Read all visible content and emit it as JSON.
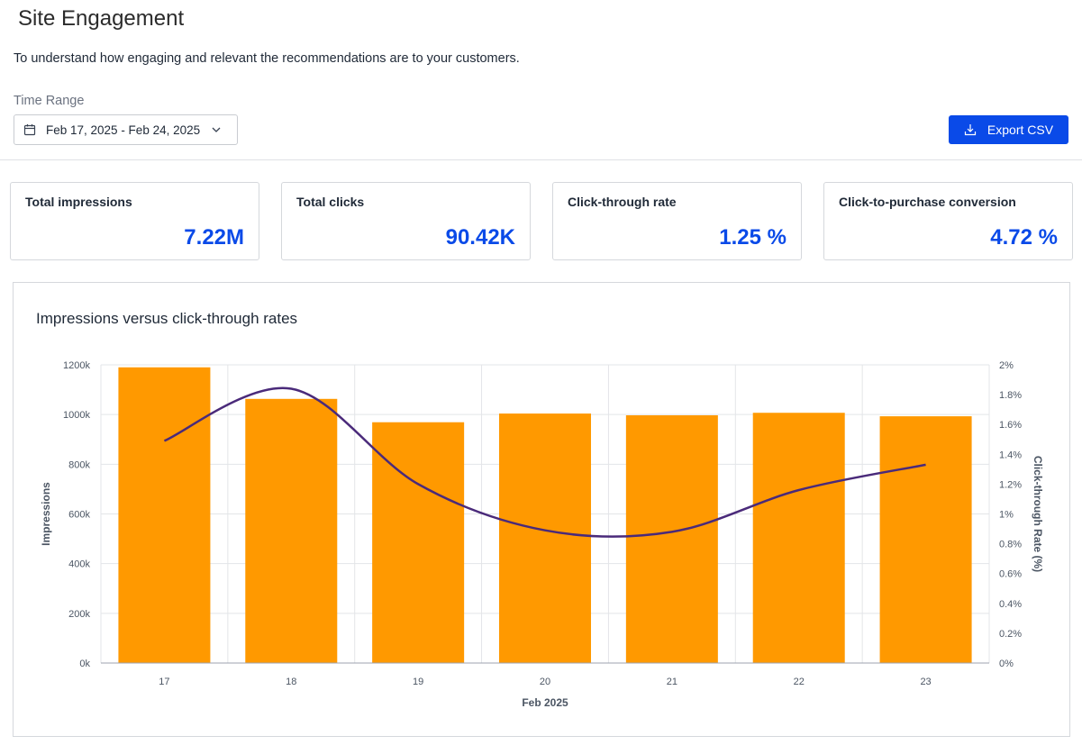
{
  "header": {
    "title": "Site Engagement",
    "description": "To understand how engaging and relevant the recommendations are to your customers."
  },
  "time_range": {
    "label": "Time Range",
    "value": "Feb 17, 2025 - Feb 24, 2025"
  },
  "export": {
    "label": "Export CSV"
  },
  "metrics": [
    {
      "label": "Total impressions",
      "value": "7.22M"
    },
    {
      "label": "Total clicks",
      "value": "90.42K"
    },
    {
      "label": "Click-through rate",
      "value": "1.25 %"
    },
    {
      "label": "Click-to-purchase conversion",
      "value": "4.72 %"
    }
  ],
  "colors": {
    "accent": "#0a4ae8",
    "bar": "#ff9900",
    "line": "#4a2a7a"
  },
  "chart_data": {
    "type": "bar",
    "title": "Impressions versus click-through rates",
    "categories": [
      "17",
      "18",
      "19",
      "20",
      "21",
      "22",
      "23"
    ],
    "xlabel": "Feb 2025",
    "ylabel": "Impressions",
    "y2label": "Click-through Rate (%)",
    "ylim": [
      0,
      1200000
    ],
    "y2lim": [
      0,
      2
    ],
    "yticks": [
      "0k",
      "200k",
      "400k",
      "600k",
      "800k",
      "1000k",
      "1200k"
    ],
    "y2ticks": [
      "0%",
      "0.2%",
      "0.4%",
      "0.6%",
      "0.8%",
      "1%",
      "1.2%",
      "1.4%",
      "1.6%",
      "1.8%",
      "2%"
    ],
    "grid": true,
    "series": [
      {
        "type": "bar",
        "axis": "left",
        "values": [
          1190000,
          1063000,
          969000,
          1004000,
          997000,
          1007000,
          993000
        ]
      },
      {
        "type": "line",
        "axis": "right",
        "values": [
          1.49,
          1.84,
          1.2,
          0.89,
          0.88,
          1.16,
          1.33
        ]
      }
    ]
  }
}
